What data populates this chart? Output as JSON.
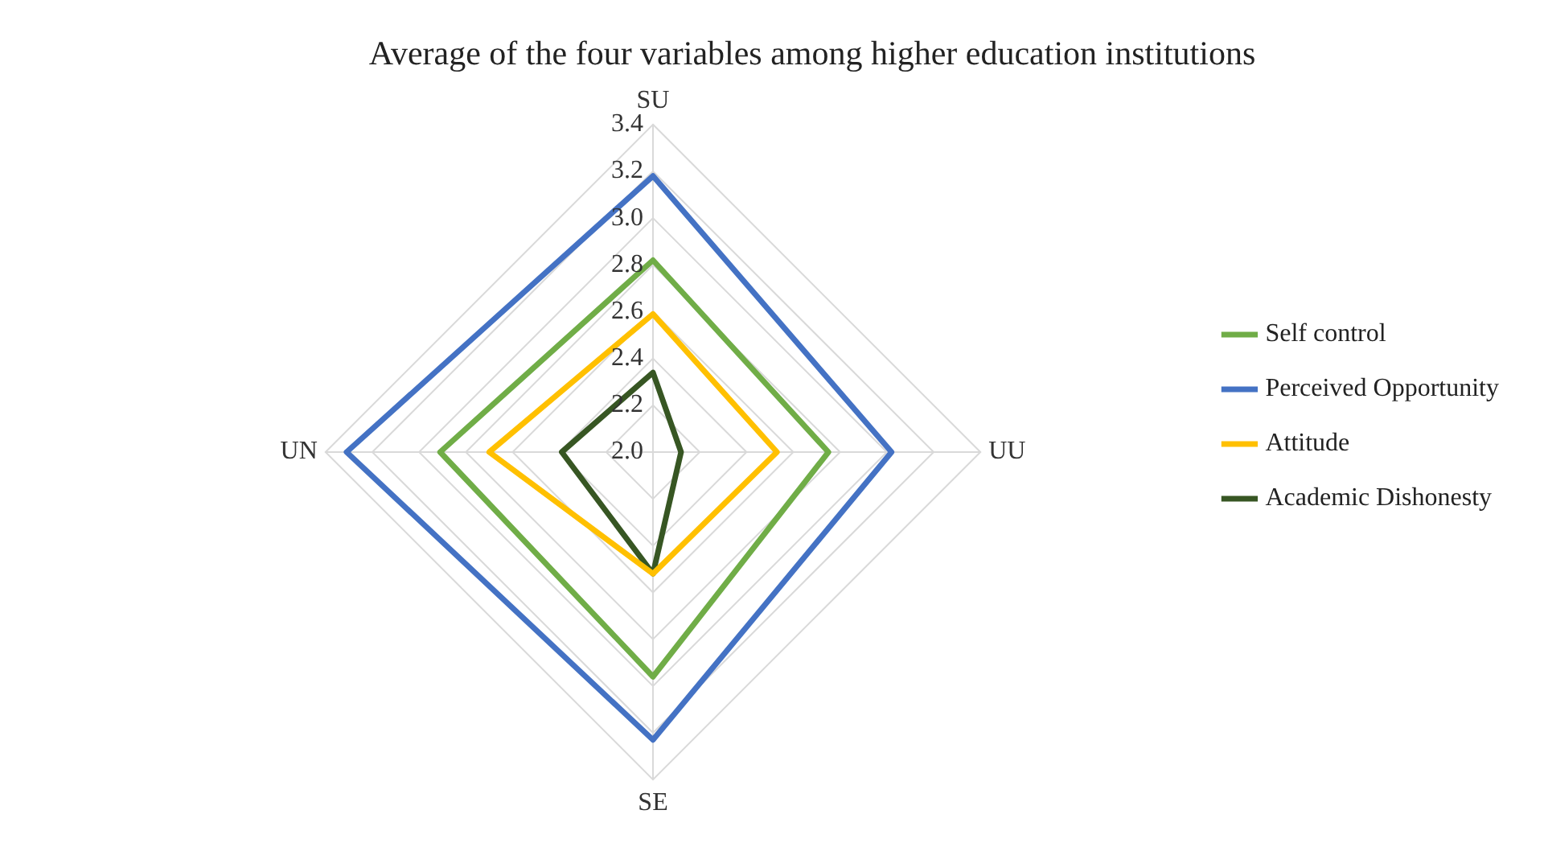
{
  "chart_data": {
    "type": "radar",
    "title": "Average of the four variables among higher education institutions",
    "categories": [
      "SU",
      "UU",
      "SE",
      "UN"
    ],
    "series": [
      {
        "name": "Self control",
        "color": "#70ad47",
        "values": [
          2.82,
          2.75,
          2.96,
          2.91
        ]
      },
      {
        "name": "Perceived Opportunity",
        "color": "#4472c4",
        "values": [
          3.18,
          3.02,
          3.23,
          3.31
        ]
      },
      {
        "name": "Attitude",
        "color": "#ffc000",
        "values": [
          2.59,
          2.53,
          2.52,
          2.7
        ]
      },
      {
        "name": "Academic Dishonesty",
        "color": "#375623",
        "values": [
          2.34,
          2.12,
          2.52,
          2.39
        ]
      }
    ],
    "ylim": [
      2.0,
      3.4
    ],
    "yticks": [
      {
        "value": 2,
        "label": "2.0"
      },
      {
        "value": 2.2,
        "label": "2.2"
      },
      {
        "value": 2.4,
        "label": "2.4"
      },
      {
        "value": 2.6,
        "label": "2.6"
      },
      {
        "value": 2.8,
        "label": "2.8"
      },
      {
        "value": 3,
        "label": "3.0"
      },
      {
        "value": 3.2,
        "label": "3.2"
      },
      {
        "value": 3.4,
        "label": "3.4"
      }
    ],
    "grid": true,
    "legend": "right",
    "marker": "none",
    "line_style": "solid"
  }
}
